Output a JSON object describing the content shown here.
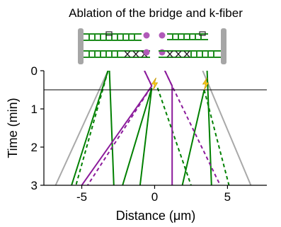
{
  "chart_data": {
    "type": "line",
    "title": "Ablation of the bridge and k-fiber",
    "xlabel": "Distance (μm)",
    "ylabel": "Time (min)",
    "xlim": [
      -7.6,
      7.7
    ],
    "ylim": [
      0,
      3
    ],
    "x_ticks": [
      "-5",
      "0",
      "5"
    ],
    "y_ticks": [
      "0",
      "1",
      "2",
      "3"
    ],
    "grid": false,
    "ablation_time_min": 0.5,
    "ablation_markers": [
      {
        "x": 0.0,
        "y": 0.5
      },
      {
        "x": 3.5,
        "y": 0.5
      }
    ],
    "colors": {
      "green": "#008000",
      "purple": "#8b1a9b",
      "gray": "#a9a9a9",
      "bolt": "#ffd21f"
    },
    "series": [
      {
        "style": "gray-solid",
        "points": [
          [
            -3.2,
            0
          ],
          [
            -6.8,
            3
          ]
        ]
      },
      {
        "style": "gray-solid",
        "points": [
          [
            3.3,
            0
          ],
          [
            6.6,
            3
          ]
        ]
      },
      {
        "style": "green-solid",
        "points": [
          [
            -3.2,
            0
          ],
          [
            -5.7,
            3
          ]
        ]
      },
      {
        "style": "green-dashed",
        "points": [
          [
            -3.2,
            0
          ],
          [
            -5.4,
            3
          ]
        ]
      },
      {
        "style": "green-solid",
        "points": [
          [
            -3.1,
            0
          ],
          [
            -2.8,
            3
          ]
        ]
      },
      {
        "style": "green-solid",
        "points": [
          [
            -0.2,
            0.45
          ],
          [
            -2.2,
            3
          ]
        ]
      },
      {
        "style": "green-solid",
        "points": [
          [
            -0.2,
            0.45
          ],
          [
            -1.0,
            3
          ]
        ]
      },
      {
        "style": "green-dashed",
        "points": [
          [
            0.2,
            0.45
          ],
          [
            2.5,
            3
          ]
        ]
      },
      {
        "style": "green-solid",
        "points": [
          [
            3.4,
            0.5
          ],
          [
            1.9,
            3
          ]
        ]
      },
      {
        "style": "green-dashed",
        "points": [
          [
            3.4,
            0.5
          ],
          [
            5.1,
            3
          ]
        ]
      },
      {
        "style": "green-solid",
        "points": [
          [
            3.6,
            0
          ],
          [
            3.9,
            3
          ]
        ]
      },
      {
        "style": "purple-solid",
        "points": [
          [
            -0.7,
            0
          ],
          [
            -0.2,
            0.4
          ],
          [
            -5.0,
            3
          ]
        ]
      },
      {
        "style": "purple-dashed",
        "points": [
          [
            -0.7,
            0
          ],
          [
            -0.2,
            0.4
          ],
          [
            -4.6,
            3
          ]
        ]
      },
      {
        "style": "purple-solid",
        "points": [
          [
            0.7,
            0
          ],
          [
            1.2,
            0.4
          ],
          [
            1.2,
            3
          ]
        ]
      },
      {
        "style": "purple-dashed",
        "points": [
          [
            0.7,
            0
          ],
          [
            1.2,
            0.4
          ],
          [
            4.5,
            3
          ]
        ]
      }
    ]
  }
}
